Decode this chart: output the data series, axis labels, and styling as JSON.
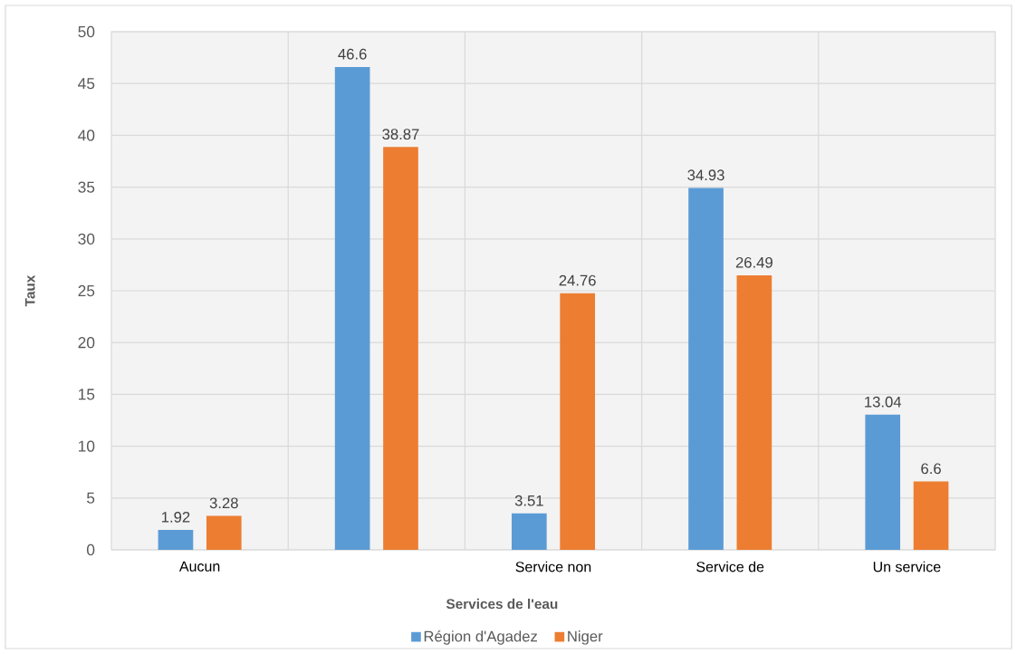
{
  "chart_data": {
    "type": "bar",
    "xlabel": "Services de l'eau",
    "ylabel": "Taux",
    "categories": [
      "Aucun",
      null,
      "Service non",
      "Service de",
      "Un service"
    ],
    "series": [
      {
        "name": "Région d'Agadez",
        "color": "#5b9bd5",
        "values": [
          1.92,
          46.6,
          3.51,
          34.93,
          13.04
        ]
      },
      {
        "name": "Niger",
        "color": "#ed7d31",
        "values": [
          3.28,
          38.87,
          24.76,
          26.49,
          6.6
        ]
      }
    ],
    "ylim": [
      0,
      50
    ],
    "yticks": [
      0,
      5,
      10,
      15,
      20,
      25,
      30,
      35,
      40,
      45,
      50
    ],
    "grid": true,
    "legend": "bottom",
    "data_labels": true
  }
}
